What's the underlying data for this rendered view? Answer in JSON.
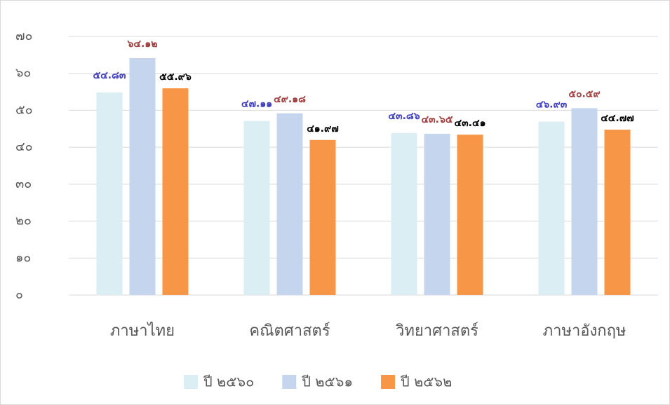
{
  "chart_data": {
    "type": "bar",
    "categories": [
      "ภาษาไทย",
      "คณิตศาสตร์",
      "วิทยาศาสตร์",
      "ภาษาอังกฤษ"
    ],
    "series": [
      {
        "name": "ปี ๒๕๖๐",
        "color": "#daeef3",
        "label_color": "#4040c0",
        "values": [
          54.83,
          47.11,
          43.86,
          46.93
        ],
        "value_labels": [
          "๕๔.๘๓",
          "๔๗.๑๑",
          "๔๓.๘๖",
          "๔๖.๙๓"
        ]
      },
      {
        "name": "ปี ๒๕๖๑",
        "color": "#c5d5ee",
        "label_color": "#a04040",
        "values": [
          64.12,
          49.18,
          43.65,
          50.59
        ],
        "value_labels": [
          "๖๔.๑๒",
          "๔๙.๑๘",
          "๔๓.๖๕",
          "๕๐.๕๙"
        ]
      },
      {
        "name": "ปี ๒๕๖๒",
        "color": "#f79646",
        "label_color": "#000000",
        "values": [
          55.96,
          41.97,
          43.41,
          44.77
        ],
        "value_labels": [
          "๕๕.๙๖",
          "๔๑.๙๗",
          "๔๓.๔๑",
          "๔๔.๗๗"
        ]
      }
    ],
    "ylim": [
      0,
      70
    ],
    "yticks": [
      {
        "value": 0,
        "label": "๐"
      },
      {
        "value": 10,
        "label": "๑๐"
      },
      {
        "value": 20,
        "label": "๒๐"
      },
      {
        "value": 30,
        "label": "๓๐"
      },
      {
        "value": 40,
        "label": "๔๐"
      },
      {
        "value": 50,
        "label": "๕๐"
      },
      {
        "value": 60,
        "label": "๖๐"
      },
      {
        "value": 70,
        "label": "๗๐"
      }
    ],
    "grid": true,
    "legend": "bottom"
  }
}
